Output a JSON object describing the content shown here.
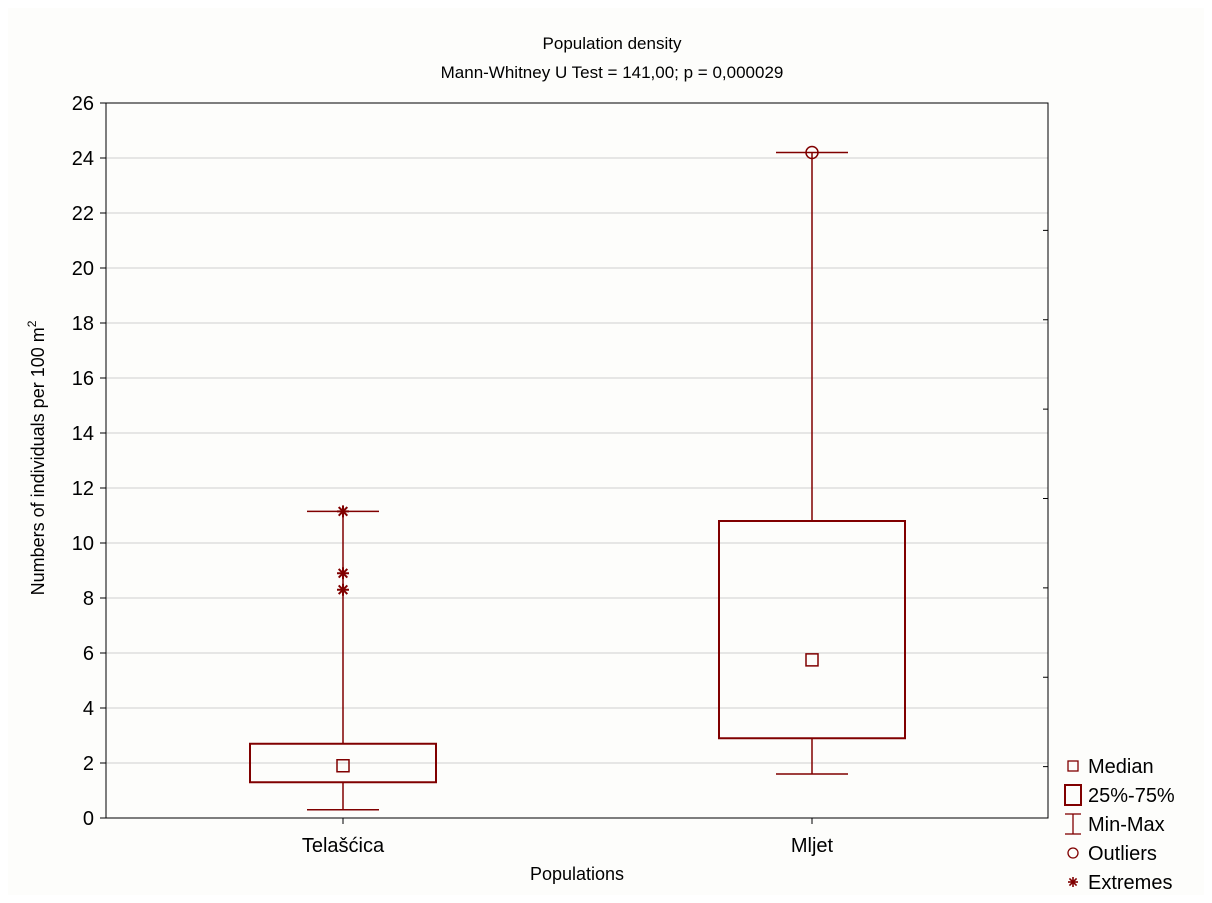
{
  "chart_data": {
    "type": "boxplot",
    "title": "Population density",
    "subtitle": "Mann-Whitney U Test = 141,00; p = 0,000029",
    "xlabel": "Populations",
    "ylabel": "Numbers of individuals per 100 m",
    "ylabel_superscript": "2",
    "ylim": [
      0,
      26
    ],
    "yticks": [
      "0",
      "2",
      "4",
      "6",
      "8",
      "10",
      "12",
      "14",
      "16",
      "18",
      "20",
      "22",
      "24",
      "26"
    ],
    "grid": true,
    "categories": [
      "Telašćica",
      "Mljet"
    ],
    "boxes": [
      {
        "name": "Telašćica",
        "median": 1.9,
        "q1": 1.3,
        "q3": 2.7,
        "min": 0.3,
        "max": 11.15,
        "outliers": [],
        "extremes": [
          11.15,
          8.9,
          8.3
        ]
      },
      {
        "name": "Mljet",
        "median": 5.75,
        "q1": 2.9,
        "q3": 10.8,
        "min": 1.6,
        "max": 24.2,
        "outliers": [
          24.2
        ],
        "extremes": []
      }
    ],
    "color": "#800000",
    "legend": {
      "position": "bottom-right",
      "items": [
        {
          "label": "Median",
          "symbol": "small-square"
        },
        {
          "label": "25%-75%",
          "symbol": "box"
        },
        {
          "label": "Min-Max",
          "symbol": "whisker"
        },
        {
          "label": "Outliers",
          "symbol": "circle"
        },
        {
          "label": "Extremes",
          "symbol": "asterisk"
        }
      ]
    }
  }
}
